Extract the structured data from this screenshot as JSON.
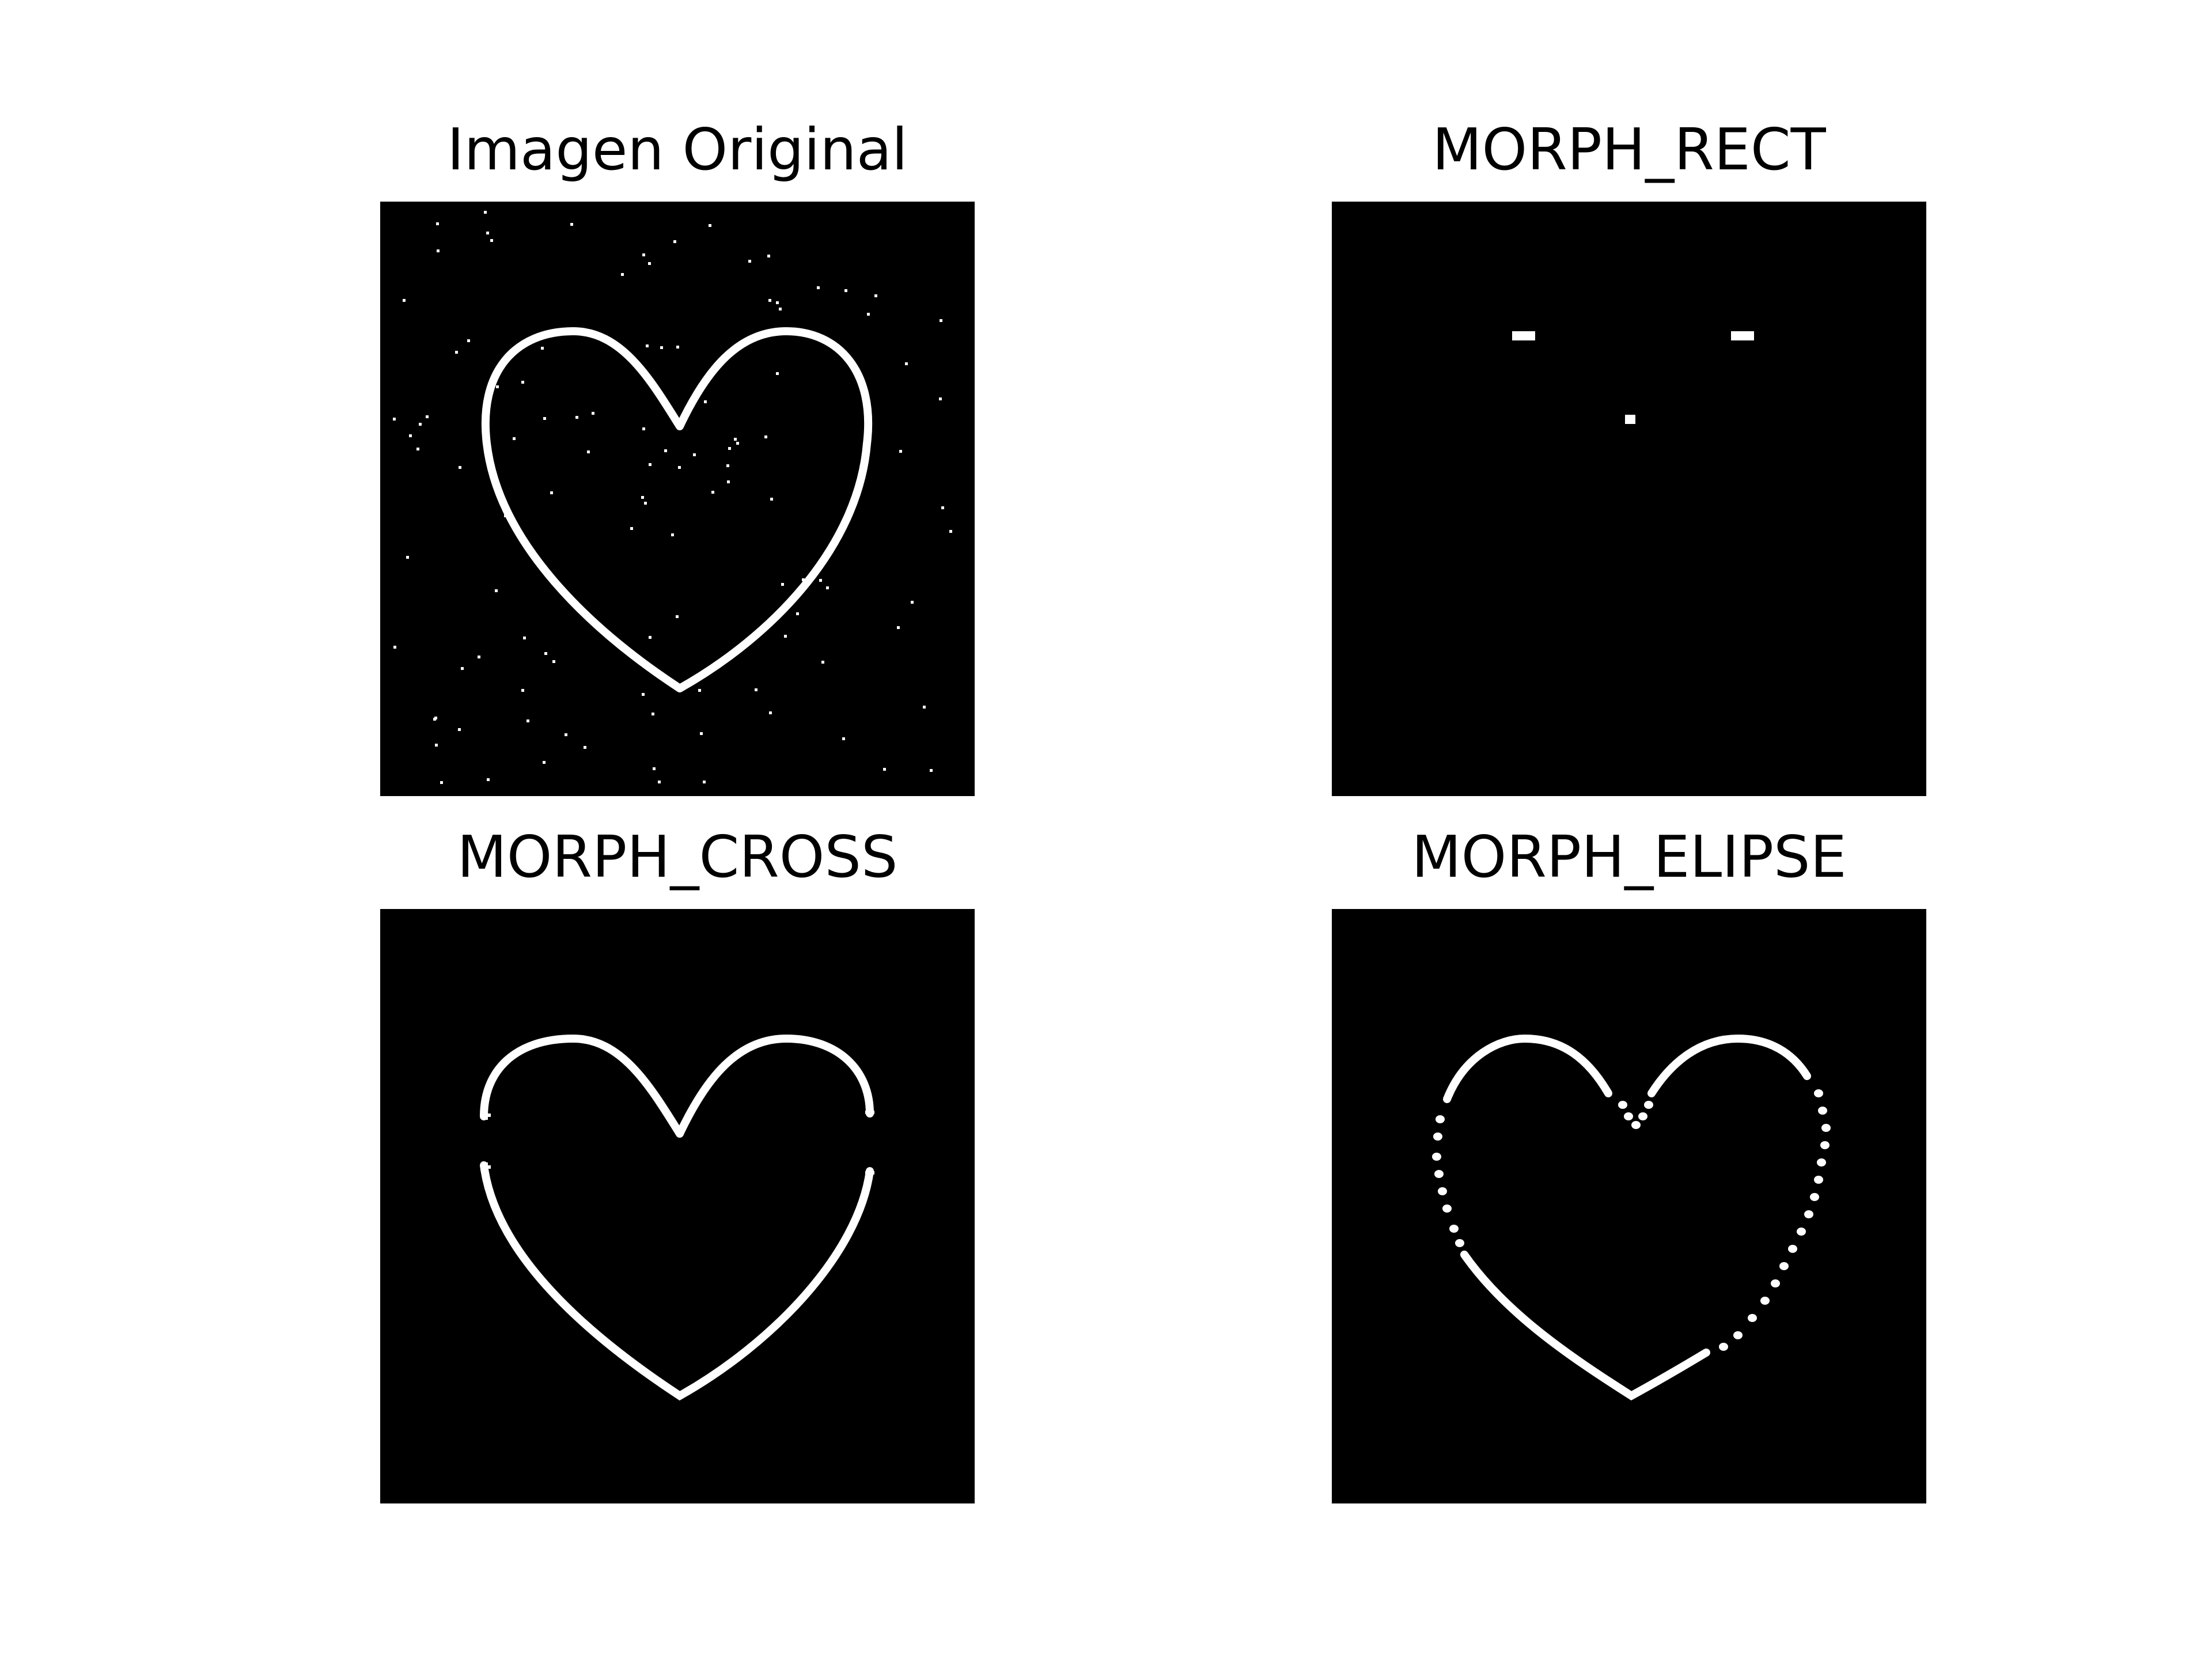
{
  "figure": {
    "panels": [
      {
        "title": "Imagen Original",
        "content": "heart-outline-with-noise"
      },
      {
        "title": "MORPH_RECT",
        "content": "three-residual-blobs"
      },
      {
        "title": "MORPH_CROSS",
        "content": "heart-outline-with-gaps"
      },
      {
        "title": "MORPH_ELIPSE",
        "content": "heart-outline-dotted"
      }
    ],
    "colors": {
      "background": "#ffffff",
      "image_background": "#000000",
      "foreground": "#ffffff",
      "title_text": "#000000"
    }
  }
}
